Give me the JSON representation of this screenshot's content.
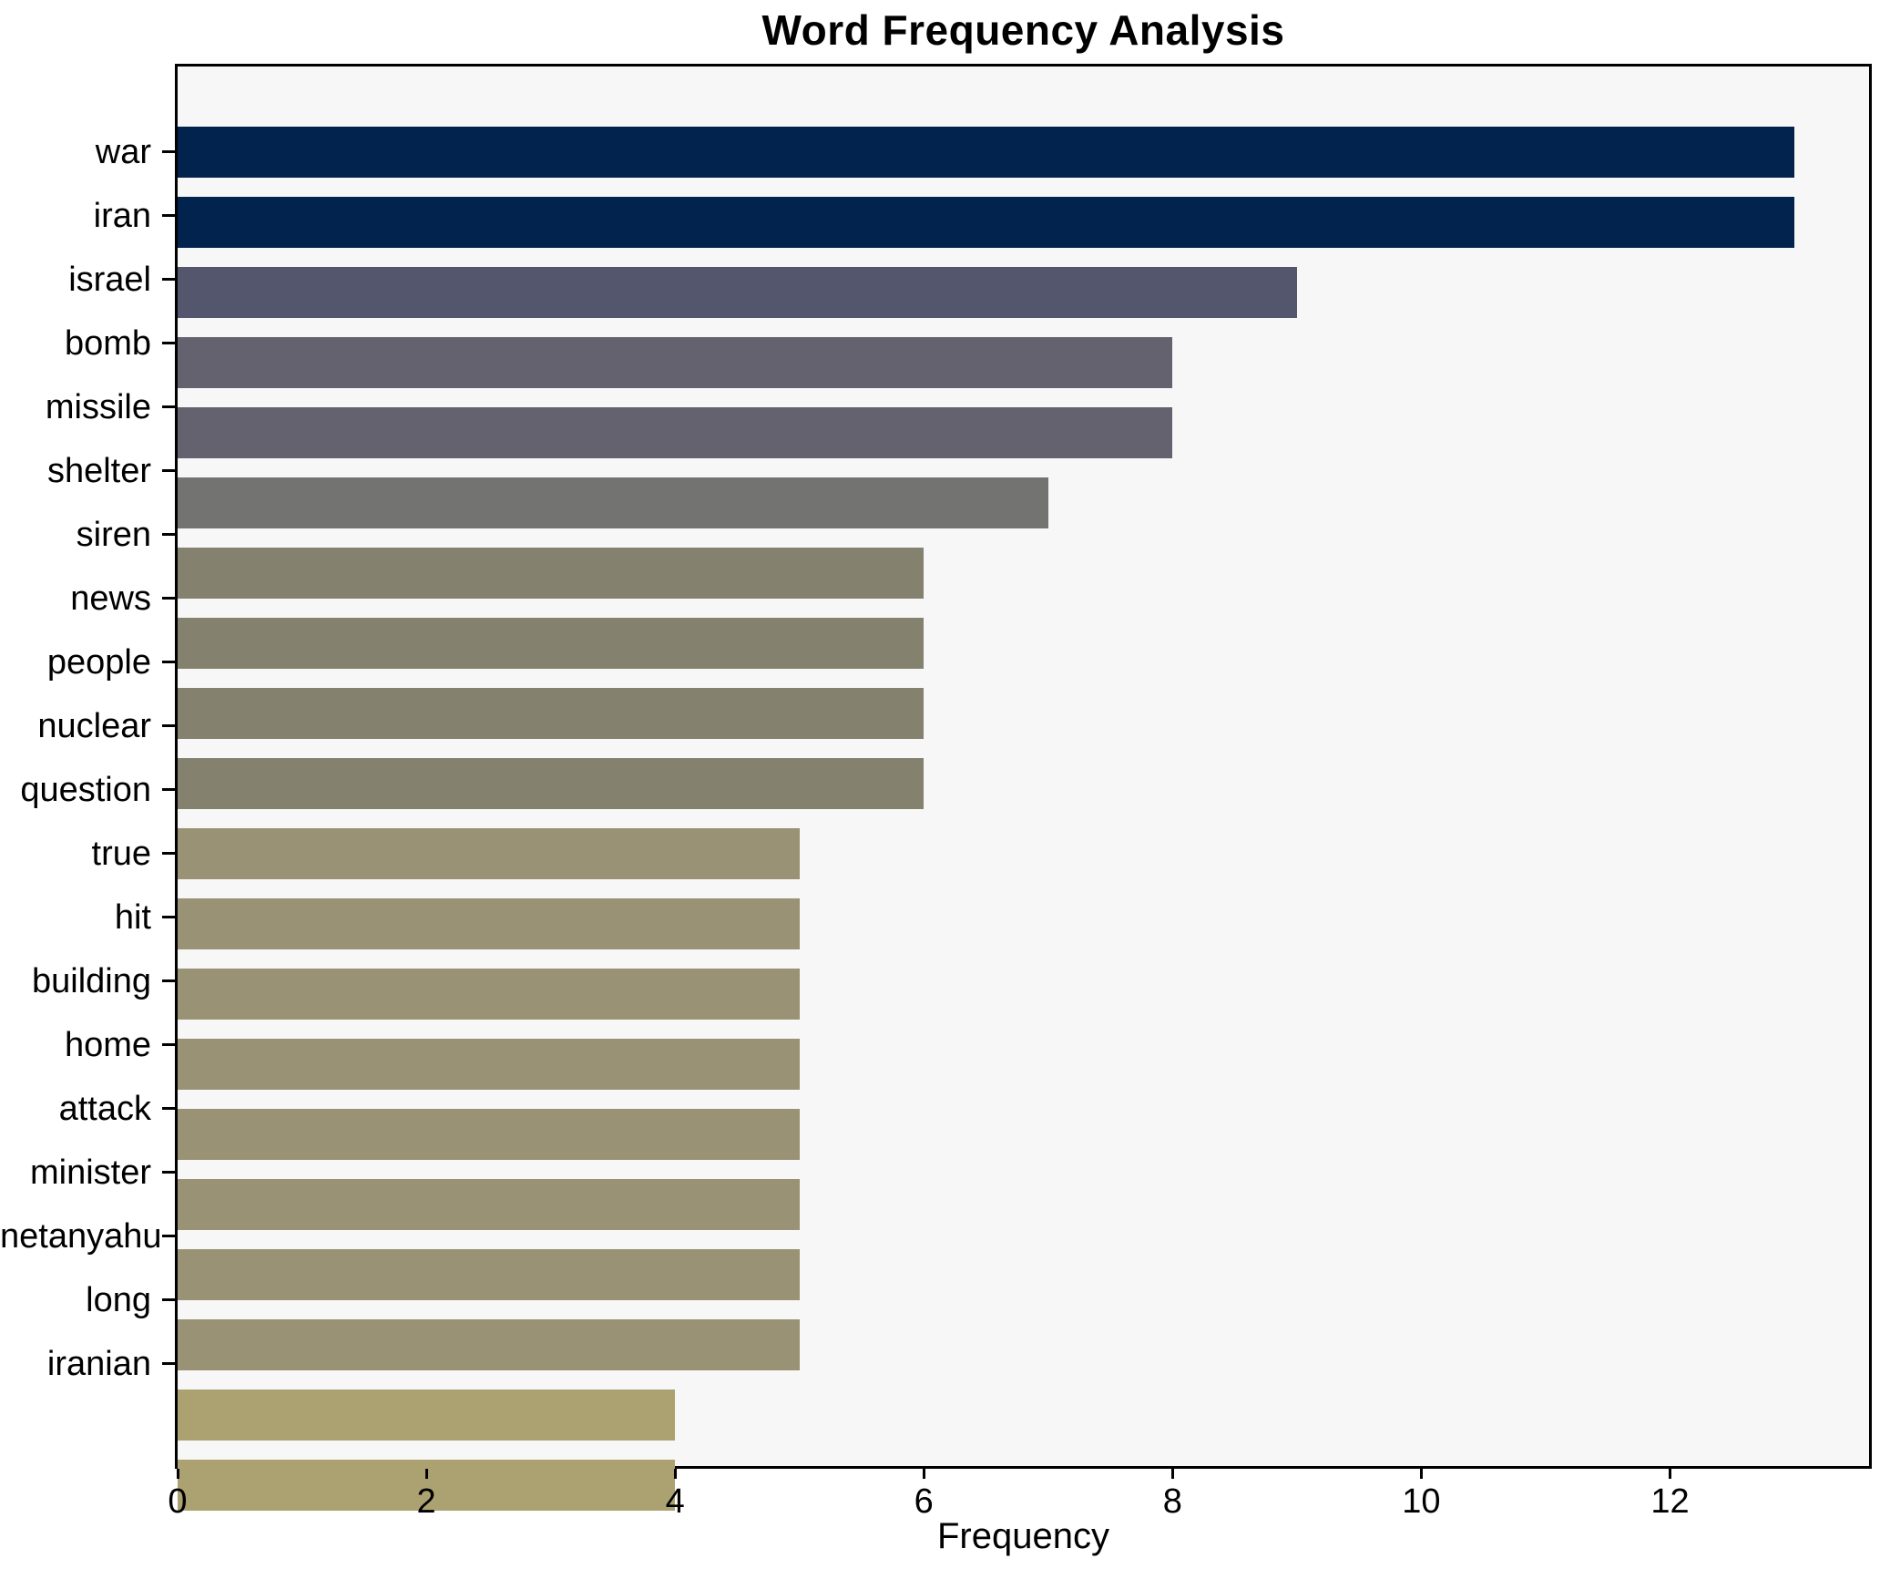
{
  "chart_data": {
    "type": "bar",
    "orientation": "horizontal",
    "title": "Word Frequency Analysis",
    "xlabel": "Frequency",
    "ylabel": "",
    "categories": [
      "war",
      "iran",
      "israel",
      "bomb",
      "missile",
      "shelter",
      "siren",
      "news",
      "people",
      "nuclear",
      "question",
      "true",
      "hit",
      "building",
      "home",
      "attack",
      "minister",
      "netanyahu",
      "long",
      "iranian"
    ],
    "values": [
      13,
      13,
      9,
      8,
      8,
      7,
      6,
      6,
      6,
      6,
      5,
      5,
      5,
      5,
      5,
      5,
      5,
      5,
      4,
      4
    ],
    "bar_colors": [
      "#02234d",
      "#02234d",
      "#53566c",
      "#63626e",
      "#63626e",
      "#737372",
      "#85816f",
      "#85816f",
      "#85816f",
      "#85816f",
      "#999274",
      "#999274",
      "#999274",
      "#999274",
      "#999274",
      "#999274",
      "#999274",
      "#999274",
      "#aca271",
      "#aca271"
    ],
    "x_tick_labels": [
      "0",
      "2",
      "4",
      "6",
      "8",
      "10",
      "12"
    ],
    "x_tick_values": [
      0,
      2,
      4,
      6,
      8,
      10,
      12
    ],
    "xlim": [
      0,
      13.6
    ],
    "grid": false,
    "legend": "none",
    "plot_background": "#f7f7f7",
    "figure_background": "#ffffff",
    "spine_color": "#000000",
    "text_color": "#000000"
  }
}
